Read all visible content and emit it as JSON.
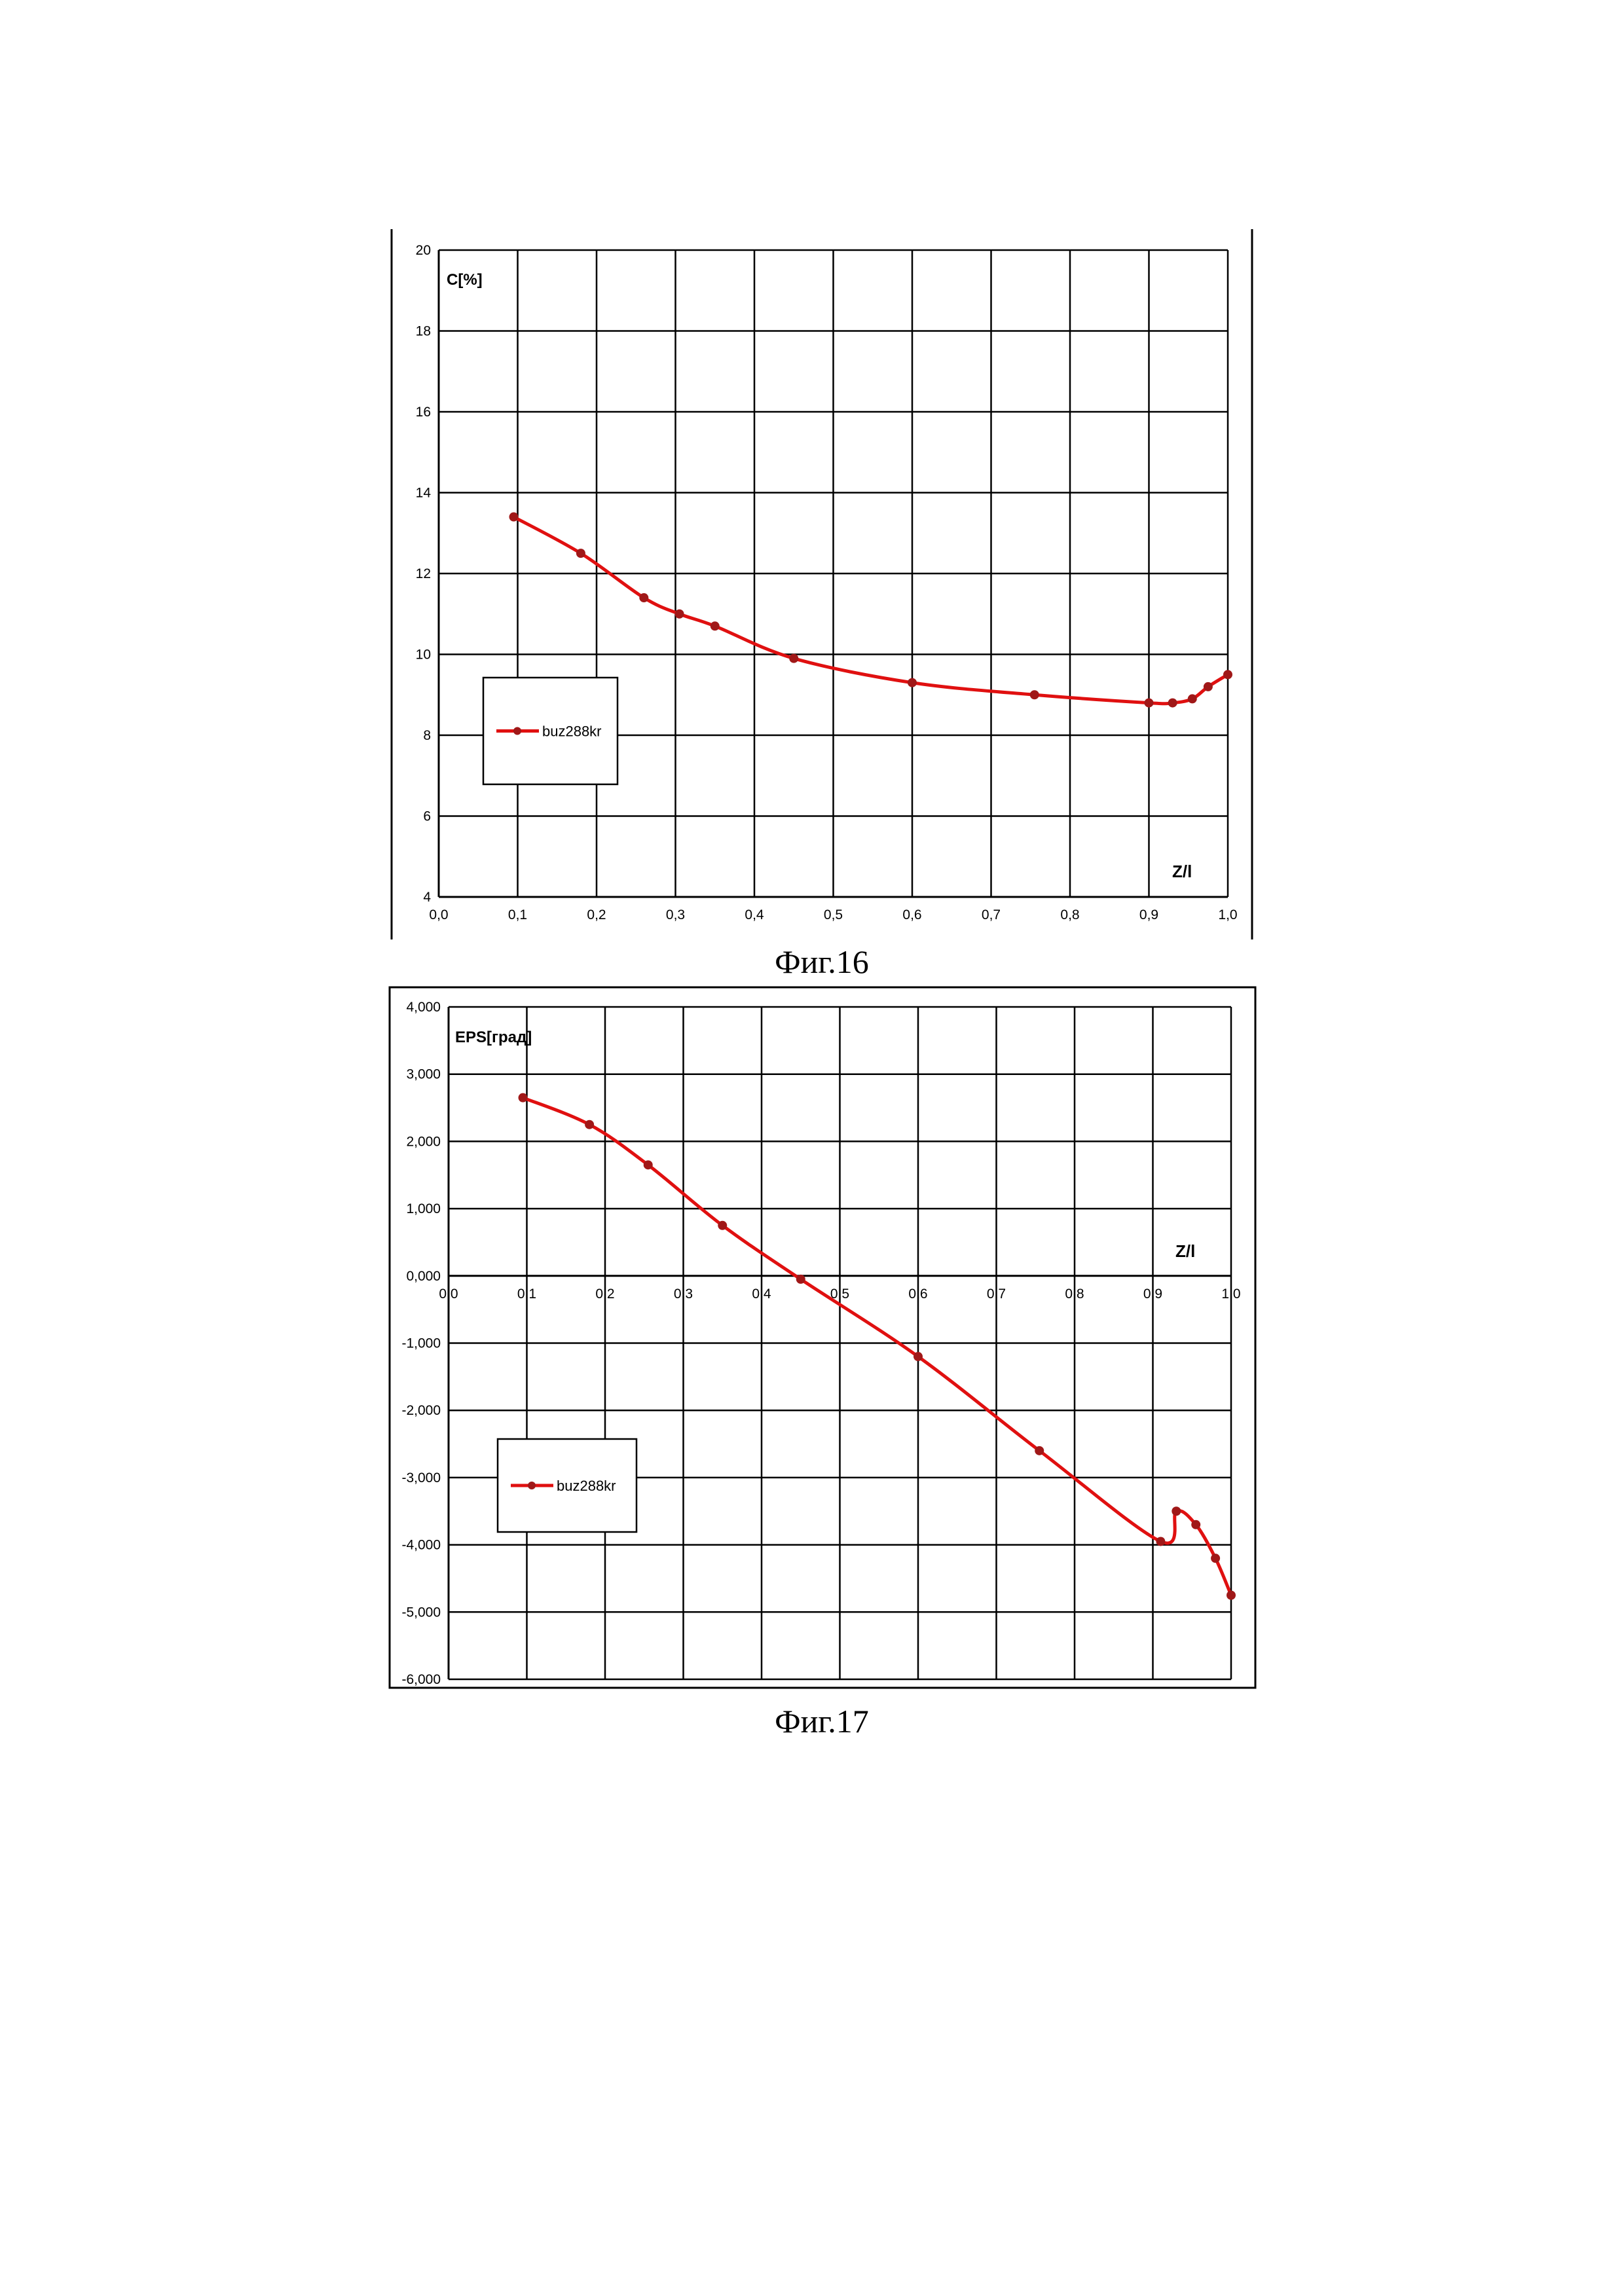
{
  "chart_data": [
    {
      "type": "line",
      "title": "",
      "xlabel": "Z/l",
      "ylabel": "C[%]",
      "xlim": [
        0,
        1
      ],
      "ylim": [
        4,
        20
      ],
      "xticks": [
        "0,0",
        "0,1",
        "0,2",
        "0,3",
        "0,4",
        "0,5",
        "0,6",
        "0,7",
        "0,8",
        "0,9",
        "1,0"
      ],
      "yticks": [
        "4",
        "6",
        "8",
        "10",
        "12",
        "14",
        "16",
        "18",
        "20"
      ],
      "grid": true,
      "legend": "left-middle",
      "series": [
        {
          "name": "buz288kr",
          "color": "#e01010",
          "x": [
            0.095,
            0.18,
            0.26,
            0.305,
            0.35,
            0.45,
            0.6,
            0.755,
            0.9,
            0.93,
            0.955,
            0.975,
            1.0
          ],
          "y": [
            13.4,
            12.5,
            11.4,
            11.0,
            10.7,
            9.9,
            9.3,
            9.0,
            8.8,
            8.8,
            8.9,
            9.2,
            9.5
          ]
        }
      ]
    },
    {
      "type": "line",
      "title": "",
      "xlabel": "Z/l",
      "ylabel": "EPS[град]",
      "xlim": [
        0,
        1
      ],
      "ylim": [
        -6,
        4
      ],
      "xticks": [
        "0,0",
        "0,1",
        "0,2",
        "0,3",
        "0,4",
        "0,5",
        "0,6",
        "0,7",
        "0,8",
        "0,9",
        "1,0"
      ],
      "yticks": [
        "4,000",
        "3,000",
        "2,000",
        "1,000",
        "0,000",
        "-1,000",
        "-2,000",
        "-3,000",
        "-4,000",
        "-5,000",
        "-6,000"
      ],
      "grid": true,
      "legend": "left-lower",
      "series": [
        {
          "name": "buz288kr",
          "color": "#e01010",
          "x": [
            0.095,
            0.18,
            0.255,
            0.35,
            0.45,
            0.6,
            0.755,
            0.91,
            0.93,
            0.955,
            0.98,
            1.0
          ],
          "y": [
            2.65,
            2.25,
            1.65,
            0.75,
            -0.05,
            -1.2,
            -2.6,
            -3.95,
            -3.5,
            -3.7,
            -4.2,
            -4.75
          ]
        }
      ]
    }
  ],
  "captions": {
    "fig16": "Фиг.16",
    "fig17": "Фиг.17"
  }
}
